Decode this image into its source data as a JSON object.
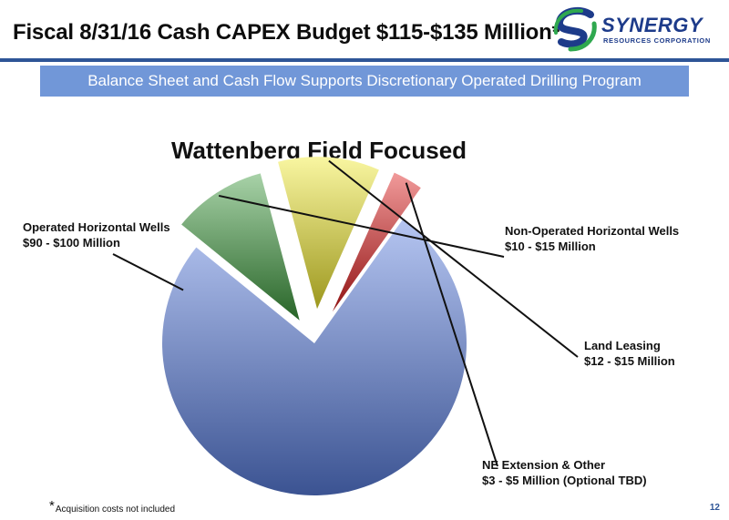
{
  "header": {
    "title": "Fiscal 8/31/16 Cash CAPEX Budget $115-$135 Million*",
    "logo_word": "SYNERGY",
    "logo_sub": "RESOURCES CORPORATION"
  },
  "banner": {
    "text": "Balance Sheet and Cash Flow Supports Discretionary Operated Drilling Program"
  },
  "chart_data": {
    "type": "pie",
    "title": "Wattenberg Field Focused",
    "slices": [
      {
        "line1": "Operated Horizontal Wells",
        "line2": "$90 - $100 Million",
        "value": 95,
        "color": "#5a7fe0"
      },
      {
        "line1": "Non-Operated Horizontal Wells",
        "line2": "$10 - $15 Million",
        "value": 12.5,
        "color": "#3d9c3d"
      },
      {
        "line1": "Land Leasing",
        "line2": "$12 - $15 Million",
        "value": 13.5,
        "color": "#f2ea2e"
      },
      {
        "line1": "NE Extension & Other",
        "line2": "$3 - $5 Million (Optional TBD)",
        "value": 4,
        "color": "#e01f1f"
      }
    ],
    "legend": "none"
  },
  "footer": {
    "star": "*",
    "footnote": "Acquisition costs not included",
    "page_number": "12"
  }
}
